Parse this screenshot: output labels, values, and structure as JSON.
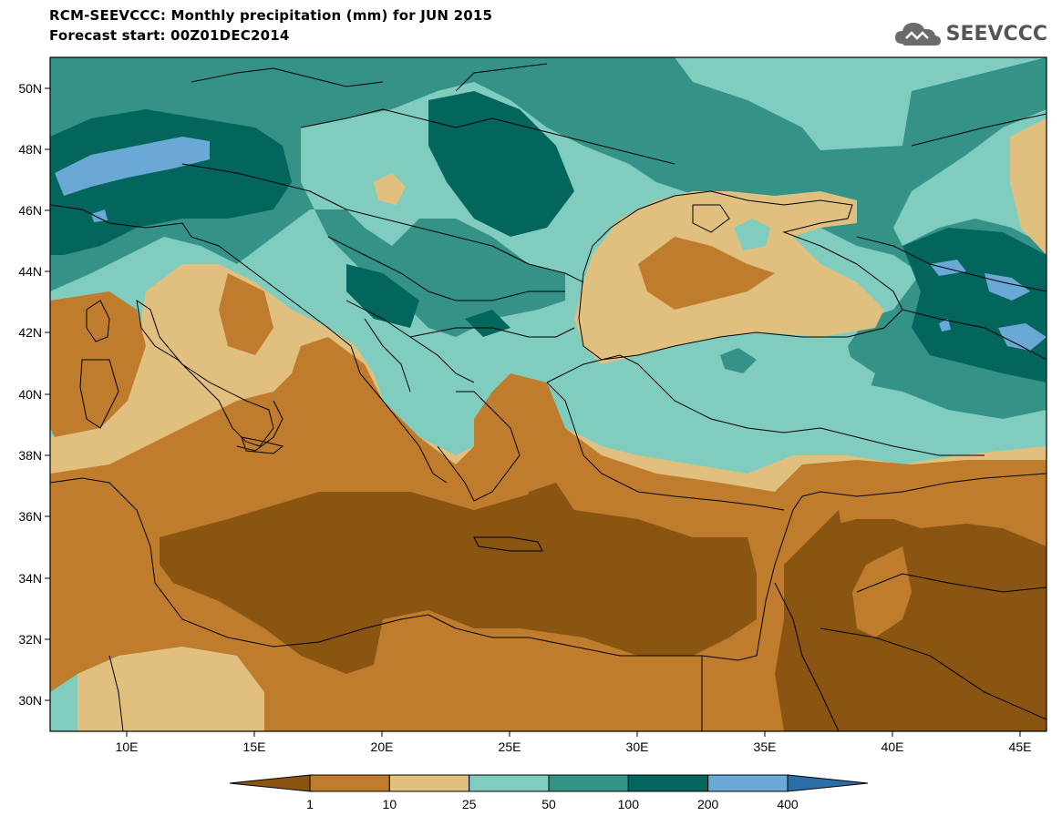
{
  "header": {
    "title": "RCM-SEEVCCC: Monthly precipitation (mm) for JUN 2015",
    "subtitle": "Forecast start: 00Z01DEC2014"
  },
  "logo": {
    "text": "SEEVCCC",
    "icon": "cloud-logo-icon"
  },
  "axes": {
    "lat_labels": [
      "50N",
      "48N",
      "46N",
      "44N",
      "42N",
      "40N",
      "38N",
      "36N",
      "34N",
      "32N",
      "30N"
    ],
    "lon_labels": [
      "10E",
      "15E",
      "20E",
      "25E",
      "30E",
      "35E",
      "40E",
      "45E"
    ]
  },
  "legend": {
    "unit": "mm",
    "thresholds": [
      "1",
      "10",
      "25",
      "50",
      "100",
      "200",
      "400"
    ],
    "colors": [
      "#8a5412",
      "#c07c2d",
      "#e1c07f",
      "#80cdc0",
      "#359287",
      "#02665c",
      "#6aa9d6",
      "#2c6fa8"
    ]
  }
}
